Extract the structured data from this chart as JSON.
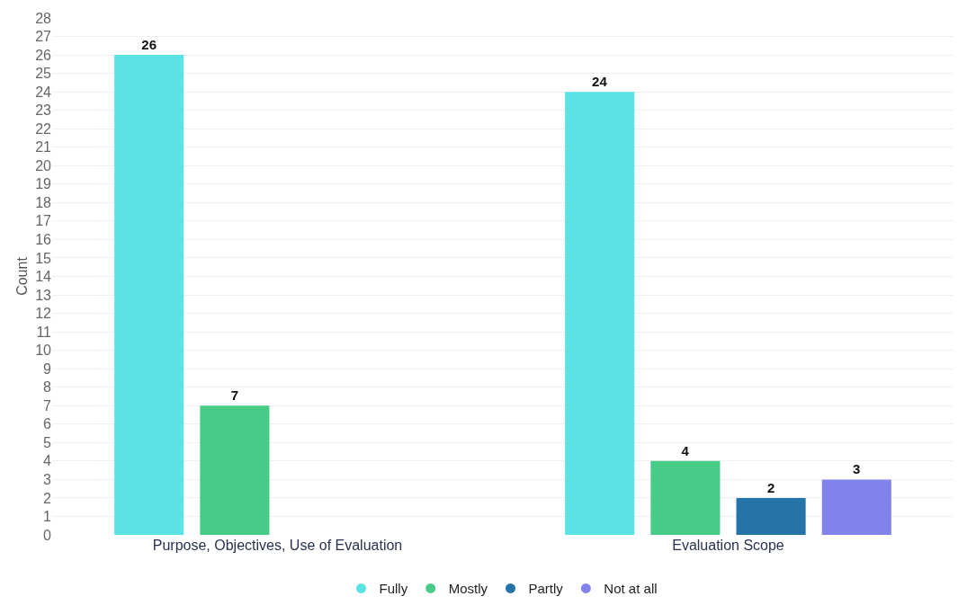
{
  "chart_data": {
    "type": "bar",
    "ylabel": "Count",
    "categories": [
      "Purpose, Objectives, Use of Evaluation",
      "Evaluation Scope"
    ],
    "series": [
      {
        "name": "Fully",
        "color": "#5ae2e4",
        "values": [
          26,
          24
        ]
      },
      {
        "name": "Mostly",
        "color": "#48cb87",
        "values": [
          7,
          4
        ]
      },
      {
        "name": "Partly",
        "color": "#2574a9",
        "values": [
          null,
          2
        ]
      },
      {
        "name": "Not at all",
        "color": "#8283ea",
        "values": [
          null,
          3
        ]
      }
    ],
    "ylim": [
      0,
      28
    ],
    "yticks": [
      0,
      1,
      2,
      3,
      4,
      5,
      6,
      7,
      8,
      9,
      10,
      11,
      12,
      13,
      14,
      15,
      16,
      17,
      18,
      19,
      20,
      21,
      22,
      23,
      24,
      25,
      26,
      27,
      28
    ],
    "grid": "y",
    "legend": "bottom",
    "data_labels": true,
    "marker": "circle"
  }
}
